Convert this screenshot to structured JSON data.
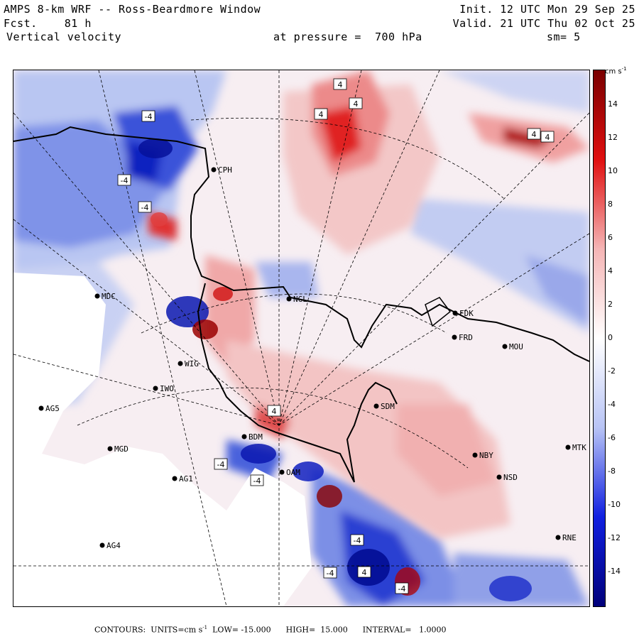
{
  "header": {
    "title": "AMPS 8-km WRF -- Ross-Beardmore Window",
    "forecast": "Fcst.    81 h",
    "field": "Vertical velocity",
    "init": "Init. 12 UTC Mon 29 Sep 25",
    "valid": "Valid. 21 UTC Thu 02 Oct 25",
    "pressure": "at pressure =  700 hPa",
    "smooth": "sm= 5"
  },
  "colorbar": {
    "units": "cm s",
    "units_exp": "-1",
    "labels": [
      "14",
      "12",
      "10",
      "8",
      "6",
      "4",
      "2",
      "0",
      "-2",
      "-4",
      "-6",
      "-8",
      "-10",
      "-12",
      "-14"
    ],
    "colors": {
      "positive_max": "#7a0000",
      "positive_mid": "#e01010",
      "positive_low": "#f5b5b5",
      "zero": "#ffffff",
      "negative_low": "#b8c4f5",
      "negative_mid": "#1020e0",
      "negative_max": "#00007a"
    }
  },
  "stations": [
    {
      "code": "MDC"
    },
    {
      "code": "NGL"
    },
    {
      "code": "FDK"
    },
    {
      "code": "FRD"
    },
    {
      "code": "MOU"
    },
    {
      "code": "IWO"
    },
    {
      "code": "AG5"
    },
    {
      "code": "SDM"
    },
    {
      "code": "MGD"
    },
    {
      "code": "NBY"
    },
    {
      "code": "MTK"
    },
    {
      "code": "AG1"
    },
    {
      "code": "NSD"
    },
    {
      "code": "AG4"
    },
    {
      "code": "RNE"
    },
    {
      "code": "CPH"
    },
    {
      "code": "WIG"
    },
    {
      "code": "BDM"
    },
    {
      "code": "OAM"
    }
  ],
  "contour_labels": [
    "-4",
    "-4",
    "-4",
    "4",
    "4",
    "4",
    "4",
    "4",
    "-4",
    "4",
    "-4",
    "4",
    "-4",
    "-4",
    "-4"
  ],
  "footer": {
    "contours": "CONTOURS:",
    "units_label": "UNITS=cm s",
    "units_exp": "-1",
    "low": "LOW= -15.000",
    "high": "HIGH=  15.000",
    "interval": "INTERVAL=   1.0000"
  }
}
